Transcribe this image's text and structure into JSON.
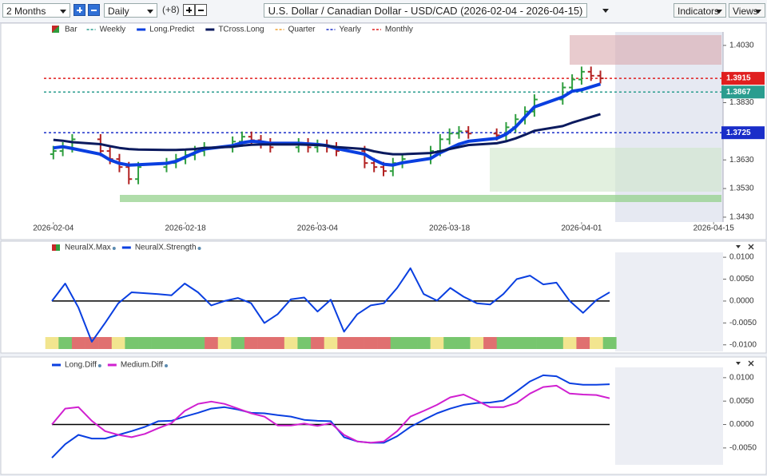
{
  "toolbar": {
    "range": "2 Months",
    "interval": "Daily",
    "offset": "(+8)",
    "title": "U.S. Dollar / Canadian Dollar - USD/CAD (2026-02-04 - 2026-04-15)",
    "indicators": "Indicators",
    "views": "Views"
  },
  "chart_data": [
    {
      "type": "ohlc",
      "x": [
        "2026-02-04",
        "2026-02-05",
        "2026-02-06",
        "2026-02-09",
        "2026-02-10",
        "2026-02-11",
        "2026-02-12",
        "2026-02-13",
        "2026-02-16",
        "2026-02-17",
        "2026-02-18",
        "2026-02-19",
        "2026-02-20",
        "2026-02-23",
        "2026-02-24",
        "2026-02-25",
        "2026-02-26",
        "2026-02-27",
        "2026-03-02",
        "2026-03-03",
        "2026-03-04",
        "2026-03-05",
        "2026-03-06",
        "2026-03-09",
        "2026-03-10",
        "2026-03-11",
        "2026-03-12",
        "2026-03-13",
        "2026-03-16",
        "2026-03-17",
        "2026-03-18",
        "2026-03-19",
        "2026-03-20",
        "2026-03-23",
        "2026-03-24",
        "2026-03-25",
        "2026-03-26",
        "2026-03-27",
        "2026-03-30",
        "2026-03-31",
        "2026-04-01",
        "2026-04-02",
        "2026-04-03"
      ],
      "open": [
        1.365,
        1.3661,
        1.3674,
        1.3702,
        1.3661,
        1.3633,
        1.3605,
        1.3563,
        1.3605,
        1.3619,
        1.3633,
        1.3647,
        1.3661,
        1.3674,
        1.3694,
        1.3711,
        1.3699,
        1.3688,
        1.3674,
        1.3688,
        1.3674,
        1.3683,
        1.3674,
        1.3661,
        1.3619,
        1.3605,
        1.3591,
        1.3619,
        1.3633,
        1.3661,
        1.3702,
        1.3722,
        1.373,
        1.3722,
        1.3716,
        1.3744,
        1.3772,
        1.3799,
        1.3841,
        1.3883,
        1.3911,
        1.3938,
        1.3924
      ],
      "high": [
        1.3679,
        1.3692,
        1.372,
        1.372,
        1.3679,
        1.3651,
        1.3623,
        1.3623,
        1.3637,
        1.3651,
        1.3665,
        1.3679,
        1.3692,
        1.3712,
        1.3729,
        1.3729,
        1.3717,
        1.3706,
        1.3706,
        1.3706,
        1.3701,
        1.3701,
        1.3692,
        1.3679,
        1.3637,
        1.3623,
        1.3637,
        1.3651,
        1.3679,
        1.372,
        1.374,
        1.3748,
        1.3748,
        1.374,
        1.3762,
        1.379,
        1.3817,
        1.3859,
        1.3901,
        1.3929,
        1.3956,
        1.3956,
        1.3942
      ],
      "low": [
        1.3632,
        1.3643,
        1.3656,
        1.3643,
        1.3615,
        1.3587,
        1.3545,
        1.3545,
        1.3587,
        1.3601,
        1.3615,
        1.3629,
        1.3643,
        1.3656,
        1.3676,
        1.3681,
        1.367,
        1.3656,
        1.3656,
        1.3656,
        1.3656,
        1.3656,
        1.3643,
        1.3601,
        1.3587,
        1.3573,
        1.3573,
        1.3601,
        1.3615,
        1.3643,
        1.3684,
        1.3704,
        1.3704,
        1.3698,
        1.3698,
        1.3726,
        1.3754,
        1.3781,
        1.3823,
        1.3865,
        1.3893,
        1.3906,
        1.3897
      ],
      "close": [
        1.3661,
        1.3674,
        1.3702,
        1.3661,
        1.3633,
        1.3605,
        1.3563,
        1.3605,
        1.3619,
        1.3633,
        1.3647,
        1.3661,
        1.3674,
        1.3694,
        1.3711,
        1.3699,
        1.3688,
        1.3674,
        1.3688,
        1.3674,
        1.3683,
        1.3674,
        1.3661,
        1.3619,
        1.3605,
        1.3591,
        1.3619,
        1.3633,
        1.3661,
        1.3702,
        1.3722,
        1.373,
        1.3722,
        1.3716,
        1.3744,
        1.3772,
        1.3799,
        1.3841,
        1.3883,
        1.3911,
        1.3938,
        1.3924,
        1.3915
      ],
      "up_color": "#2e9e3e",
      "down_color": "#b22222",
      "series": [
        {
          "name": "Bar",
          "color": "#2e9e3e",
          "style": "bar"
        },
        {
          "name": "Weekly",
          "color": "#2a9d8f",
          "style": "dash",
          "level": 1.3867
        },
        {
          "name": "Long.Predict",
          "color": "#0a3fe0",
          "style": "line",
          "width": 4,
          "values": [
            1.3672,
            1.3676,
            1.367,
            1.365,
            1.363,
            1.3618,
            1.3612,
            1.3613,
            1.3618,
            1.3625,
            1.364,
            1.3655,
            1.3668,
            1.368,
            1.369,
            1.3695,
            1.3693,
            1.3688,
            1.3688,
            1.3686,
            1.3684,
            1.368,
            1.367,
            1.365,
            1.363,
            1.3615,
            1.3612,
            1.362,
            1.3635,
            1.3655,
            1.367,
            1.3685,
            1.3695,
            1.3705,
            1.372,
            1.3745,
            1.378,
            1.3815,
            1.385,
            1.387,
            1.3875,
            1.3885,
            1.3895
          ]
        },
        {
          "name": "TCross.Long",
          "color": "#0b1a5e",
          "style": "line",
          "width": 3,
          "values": [
            1.37,
            1.3697,
            1.3692,
            1.3685,
            1.3678,
            1.3672,
            1.3668,
            1.3666,
            1.3665,
            1.3665,
            1.3666,
            1.3668,
            1.3672,
            1.3676,
            1.368,
            1.3683,
            1.3684,
            1.3684,
            1.3684,
            1.3683,
            1.3682,
            1.368,
            1.3675,
            1.3668,
            1.366,
            1.3654,
            1.365,
            1.365,
            1.3654,
            1.366,
            1.3668,
            1.3675,
            1.3682,
            1.3688,
            1.3695,
            1.3705,
            1.3718,
            1.3732,
            1.3748,
            1.376,
            1.377,
            1.378,
            1.379
          ]
        },
        {
          "name": "Quarter",
          "color": "#f0a030",
          "style": "dash"
        },
        {
          "name": "Yearly",
          "color": "#1a2ec9",
          "style": "dash",
          "level": 1.3725
        },
        {
          "name": "Monthly",
          "color": "#e01f1f",
          "style": "dash",
          "level": 1.3915
        }
      ],
      "xlim": [
        "2026-02-03",
        "2026-04-16"
      ],
      "xticks": [
        "2026-02-04",
        "2026-02-18",
        "2026-03-04",
        "2026-03-18",
        "2026-04-01",
        "2026-04-15"
      ],
      "ylim": [
        1.3413,
        1.4077
      ],
      "yticks": [
        {
          "value": 1.403,
          "label": "1.4030"
        },
        {
          "value": 1.383,
          "label": "1.3830"
        },
        {
          "value": 1.363,
          "label": "1.3630"
        },
        {
          "value": 1.353,
          "label": "1.3530"
        },
        {
          "value": 1.343,
          "label": "1.3430"
        }
      ]
    },
    {
      "type": "line",
      "series": [
        {
          "name": "NeuralX.Max",
          "style": "strip",
          "colors": [
            "#f2e58f",
            "#77c66e",
            "#e07070",
            "#e07070",
            "#e07070",
            "#f2e58f",
            "#77c66e",
            "#77c66e",
            "#77c66e",
            "#77c66e",
            "#77c66e",
            "#77c66e",
            "#e07070",
            "#f2e58f",
            "#77c66e",
            "#e07070",
            "#e07070",
            "#e07070",
            "#f2e58f",
            "#77c66e",
            "#e07070",
            "#f2e58f",
            "#e07070",
            "#e07070",
            "#e07070",
            "#e07070",
            "#77c66e",
            "#77c66e",
            "#77c66e",
            "#f2e58f",
            "#77c66e",
            "#77c66e",
            "#f2e58f",
            "#e07070",
            "#77c66e",
            "#77c66e",
            "#77c66e",
            "#77c66e",
            "#77c66e",
            "#f2e58f",
            "#e07070",
            "#f2e58f",
            "#77c66e"
          ]
        },
        {
          "name": "NeuralX.Strength",
          "color": "#0a3fe0",
          "style": "line",
          "width": 2,
          "values": [
            0,
            0.004,
            -0.0015,
            -0.0093,
            -0.005,
            -0.0005,
            0.002,
            0.0018,
            0.0016,
            0.0013,
            0.004,
            0.002,
            -0.001,
            0,
            0.0007,
            -0.0005,
            -0.005,
            -0.003,
            0.0004,
            0.0008,
            -0.0024,
            0.0003,
            -0.007,
            -0.003,
            -0.001,
            -0.0005,
            0.003,
            0.0075,
            0.0016,
            0.0001,
            0.003,
            0.001,
            -0.0005,
            -0.0008,
            0.0016,
            0.005,
            0.0058,
            0.0038,
            0.0042,
            0,
            -0.0027,
            0.0002,
            0.002
          ]
        }
      ],
      "ylim": [
        -0.0115,
        0.0133
      ],
      "yticks": [
        {
          "value": 0.01,
          "label": "0.0100"
        },
        {
          "value": 0.005,
          "label": "0.0050"
        },
        {
          "value": 0,
          "label": "0.0000"
        },
        {
          "value": -0.005,
          "label": "-0.0050"
        },
        {
          "value": -0.01,
          "label": "-0.0100"
        }
      ],
      "zero_line": true
    },
    {
      "type": "line",
      "series": [
        {
          "name": "Long.Diff",
          "color": "#0a3fe0",
          "style": "line",
          "width": 2,
          "values": [
            -0.0071,
            -0.0042,
            -0.0022,
            -0.003,
            -0.003,
            -0.0022,
            -0.0014,
            -0.0005,
            0.0007,
            0.0008,
            0.0017,
            0.0025,
            0.0034,
            0.0037,
            0.0032,
            0.0025,
            0.0024,
            0.002,
            0.0017,
            0.001,
            0.0008,
            0.0007,
            -0.0027,
            -0.0036,
            -0.0039,
            -0.0039,
            -0.0025,
            -0.0005,
            0.001,
            0.0024,
            0.0034,
            0.0042,
            0.0046,
            0.0047,
            0.0051,
            0.0071,
            0.0092,
            0.0105,
            0.0103,
            0.0088,
            0.0085,
            0.0085,
            0.0086
          ]
        },
        {
          "name": "Medium.Diff",
          "color": "#d020d0",
          "style": "line",
          "width": 2,
          "values": [
            0,
            0.0034,
            0.0037,
            0.0008,
            -0.0014,
            -0.0022,
            -0.0027,
            -0.002,
            -0.0008,
            0.0003,
            0.0029,
            0.0044,
            0.0049,
            0.0044,
            0.0034,
            0.0024,
            0.0017,
            -0.0002,
            -0.0002,
            0.0002,
            -0.0003,
            0.0003,
            -0.0022,
            -0.0036,
            -0.0039,
            -0.0036,
            -0.0014,
            0.0017,
            0.0029,
            0.0042,
            0.0058,
            0.0064,
            0.0051,
            0.0037,
            0.0037,
            0.0046,
            0.0066,
            0.008,
            0.0083,
            0.0066,
            0.0064,
            0.0063,
            0.0056
          ]
        }
      ],
      "ylim": [
        -0.0086,
        0.0139
      ],
      "yticks": [
        {
          "value": 0.01,
          "label": "0.0100"
        },
        {
          "value": 0.005,
          "label": "0.0050"
        },
        {
          "value": 0,
          "label": "0.0000"
        },
        {
          "value": -0.005,
          "label": "-0.0050"
        }
      ],
      "zero_line": true
    }
  ]
}
